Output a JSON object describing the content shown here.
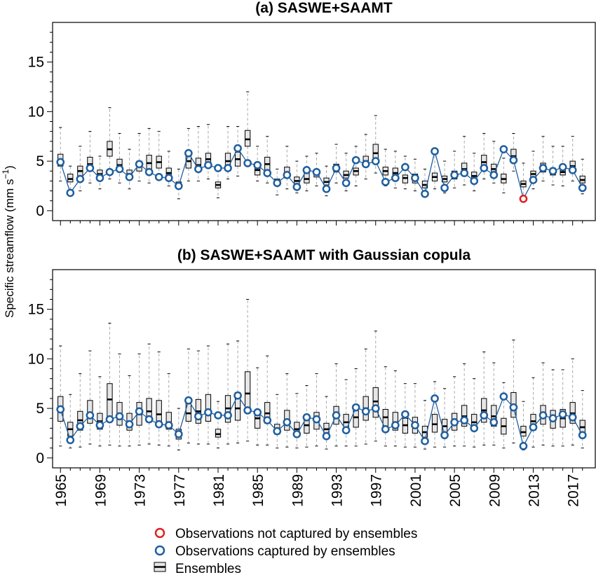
{
  "chart_data": {
    "type": "box",
    "ylabel": "Specific streamflow (mm s",
    "ylabel_sup": "−1",
    "ylabel_close": ")",
    "x_ticks": [
      1965,
      1969,
      1973,
      1977,
      1981,
      1985,
      1989,
      1993,
      1997,
      2001,
      2005,
      2009,
      2013,
      2017
    ],
    "y_ticks": [
      0,
      5,
      10,
      15
    ],
    "ylim": [
      -1,
      19
    ],
    "xlim": [
      1964.2,
      2019.3
    ],
    "colors": {
      "box_fill": "#e6e6e6",
      "captured": "#1f5fa0",
      "not_captured": "#e02020",
      "whisker": "#aaaaaa"
    },
    "panels": [
      {
        "title": "(a) SASWE+SAAMT",
        "years": [
          1965,
          1966,
          1967,
          1968,
          1969,
          1970,
          1971,
          1972,
          1973,
          1974,
          1975,
          1976,
          1977,
          1978,
          1979,
          1980,
          1981,
          1982,
          1983,
          1984,
          1985,
          1986,
          1987,
          1988,
          1989,
          1990,
          1991,
          1992,
          1993,
          1994,
          1995,
          1996,
          1997,
          1998,
          1999,
          2000,
          2001,
          2002,
          2003,
          2004,
          2005,
          2006,
          2007,
          2008,
          2009,
          2010,
          2011,
          2012,
          2013,
          2014,
          2015,
          2016,
          2017,
          2018
        ],
        "whislo": [
          3.0,
          1.5,
          2.0,
          2.8,
          2.2,
          3.2,
          2.8,
          2.2,
          3.0,
          2.8,
          3.2,
          2.5,
          1.2,
          3.0,
          3.0,
          3.2,
          1.3,
          3.2,
          3.5,
          4.5,
          3.0,
          2.8,
          1.6,
          2.2,
          1.8,
          2.0,
          2.5,
          1.5,
          2.8,
          2.0,
          2.5,
          3.2,
          3.8,
          2.5,
          2.3,
          2.2,
          2.0,
          1.5,
          2.2,
          1.8,
          2.3,
          2.6,
          2.0,
          3.2,
          2.8,
          1.8,
          4.0,
          1.5,
          2.2,
          3.0,
          2.6,
          2.5,
          3.0,
          1.7
        ],
        "q1": [
          4.5,
          2.9,
          3.5,
          4.2,
          3.3,
          5.5,
          4.2,
          3.4,
          4.0,
          4.2,
          4.3,
          3.4,
          2.3,
          4.3,
          4.0,
          4.5,
          2.3,
          4.5,
          4.5,
          6.5,
          3.6,
          4.1,
          2.6,
          3.3,
          2.7,
          2.8,
          3.4,
          2.6,
          3.9,
          3.3,
          3.6,
          4.6,
          5.0,
          3.6,
          3.3,
          2.8,
          2.8,
          2.3,
          3.0,
          2.9,
          3.2,
          3.7,
          3.2,
          4.4,
          3.8,
          2.8,
          5.0,
          2.4,
          3.3,
          3.9,
          3.6,
          3.6,
          4.2,
          2.8
        ],
        "med": [
          5.0,
          3.2,
          4.0,
          4.7,
          3.7,
          6.2,
          4.6,
          3.7,
          4.5,
          4.8,
          4.9,
          3.8,
          2.5,
          5.0,
          4.6,
          5.2,
          2.6,
          5.0,
          5.2,
          7.2,
          4.1,
          4.7,
          2.9,
          3.6,
          3.0,
          3.2,
          3.8,
          2.9,
          4.3,
          3.6,
          4.0,
          5.0,
          5.8,
          4.0,
          3.8,
          3.3,
          3.3,
          2.6,
          3.4,
          3.2,
          3.7,
          4.2,
          3.5,
          4.9,
          4.2,
          3.2,
          5.5,
          2.7,
          3.7,
          4.3,
          3.9,
          3.9,
          4.5,
          3.1
        ],
        "q3": [
          5.7,
          3.7,
          4.5,
          5.4,
          4.1,
          7.0,
          5.2,
          4.1,
          5.0,
          5.6,
          5.5,
          4.3,
          2.9,
          5.5,
          5.3,
          5.8,
          2.9,
          5.8,
          5.9,
          8.1,
          4.6,
          5.4,
          3.2,
          4.4,
          3.4,
          3.8,
          4.1,
          3.3,
          4.7,
          4.0,
          4.3,
          5.5,
          6.7,
          4.4,
          4.3,
          3.6,
          3.7,
          3.0,
          3.8,
          3.5,
          4.0,
          4.8,
          3.9,
          5.6,
          4.7,
          3.7,
          6.2,
          3.0,
          4.0,
          4.8,
          4.3,
          4.4,
          5.0,
          3.5
        ],
        "whishi": [
          8.4,
          4.5,
          6.5,
          8.0,
          5.5,
          10.4,
          7.8,
          6.2,
          7.8,
          8.3,
          8.0,
          6.0,
          4.2,
          8.3,
          8.5,
          8.7,
          4.0,
          8.5,
          8.5,
          12.0,
          6.5,
          7.5,
          4.2,
          6.5,
          5.0,
          5.5,
          5.8,
          4.5,
          6.7,
          5.8,
          6.5,
          7.7,
          9.6,
          6.2,
          6.0,
          5.5,
          5.2,
          4.2,
          6.2,
          5.0,
          6.0,
          7.5,
          5.8,
          7.8,
          7.0,
          5.3,
          7.8,
          4.8,
          6.0,
          7.5,
          6.5,
          6.5,
          7.5,
          5.2
        ],
        "obs": [
          4.9,
          1.8,
          3.2,
          4.3,
          3.3,
          3.9,
          4.2,
          3.4,
          4.7,
          3.9,
          3.4,
          3.3,
          2.5,
          5.8,
          4.2,
          4.6,
          4.3,
          4.3,
          6.3,
          4.8,
          4.6,
          3.8,
          2.8,
          3.6,
          2.4,
          4.1,
          3.9,
          2.2,
          4.3,
          2.8,
          5.1,
          4.7,
          5.0,
          2.9,
          3.3,
          4.4,
          3.3,
          1.7,
          6.0,
          2.3,
          3.6,
          3.8,
          3.0,
          4.3,
          3.6,
          6.2,
          5.1,
          1.2,
          3.1,
          4.3,
          4.0,
          4.4,
          4.1,
          2.3
        ],
        "missed_index": 47
      },
      {
        "title": "(b) SASWE+SAAMT with Gaussian copula",
        "years": [
          1965,
          1966,
          1967,
          1968,
          1969,
          1970,
          1971,
          1972,
          1973,
          1974,
          1975,
          1976,
          1977,
          1978,
          1979,
          1980,
          1981,
          1982,
          1983,
          1984,
          1985,
          1986,
          1987,
          1988,
          1989,
          1990,
          1991,
          1992,
          1993,
          1994,
          1995,
          1996,
          1997,
          1998,
          1999,
          2000,
          2001,
          2002,
          2003,
          2004,
          2005,
          2006,
          2007,
          2008,
          2009,
          2010,
          2011,
          2012,
          2013,
          2014,
          2015,
          2016,
          2017,
          2018
        ],
        "whislo": [
          1.2,
          1.0,
          1.1,
          1.4,
          1.2,
          1.3,
          1.2,
          1.2,
          1.3,
          1.4,
          1.3,
          1.2,
          0.8,
          1.5,
          1.4,
          1.4,
          1.0,
          1.4,
          1.5,
          1.7,
          1.3,
          1.3,
          1.0,
          1.1,
          1.0,
          1.1,
          1.2,
          0.9,
          1.2,
          1.2,
          1.2,
          1.4,
          1.7,
          1.2,
          1.2,
          1.1,
          1.1,
          0.9,
          1.1,
          1.1,
          1.2,
          1.2,
          1.1,
          1.3,
          1.3,
          1.0,
          1.5,
          0.8,
          1.1,
          1.3,
          1.2,
          1.2,
          1.3,
          1.0
        ],
        "q1": [
          3.7,
          2.2,
          2.8,
          3.5,
          2.9,
          3.8,
          3.3,
          2.8,
          3.3,
          3.6,
          3.4,
          2.9,
          1.9,
          3.7,
          3.5,
          3.7,
          2.1,
          3.6,
          3.8,
          4.7,
          3.0,
          3.5,
          2.4,
          2.8,
          2.4,
          2.5,
          2.9,
          2.3,
          3.4,
          2.8,
          3.1,
          3.8,
          4.1,
          3.1,
          2.8,
          2.5,
          2.5,
          2.1,
          2.6,
          2.5,
          2.8,
          3.2,
          2.8,
          3.6,
          3.2,
          2.4,
          4.1,
          2.2,
          2.8,
          3.4,
          3.0,
          3.1,
          3.5,
          2.5
        ],
        "med": [
          4.9,
          2.9,
          3.8,
          4.5,
          3.7,
          5.9,
          4.3,
          3.6,
          4.4,
          4.7,
          4.4,
          3.6,
          2.4,
          4.5,
          4.7,
          4.8,
          2.4,
          5.0,
          5.0,
          6.5,
          4.0,
          4.5,
          2.9,
          3.6,
          2.9,
          3.3,
          3.7,
          2.9,
          4.3,
          3.6,
          4.1,
          5.0,
          5.7,
          4.1,
          3.6,
          3.3,
          3.3,
          2.6,
          3.4,
          3.2,
          3.7,
          4.2,
          3.6,
          4.8,
          4.2,
          3.2,
          5.3,
          2.6,
          3.7,
          4.2,
          3.9,
          4.0,
          4.5,
          3.1
        ],
        "q3": [
          6.2,
          3.6,
          4.7,
          5.8,
          4.5,
          7.5,
          5.6,
          4.5,
          5.6,
          6.0,
          5.8,
          4.6,
          2.9,
          6.0,
          5.9,
          6.4,
          2.9,
          6.3,
          6.6,
          8.7,
          4.8,
          5.6,
          3.4,
          4.8,
          3.6,
          4.2,
          4.6,
          3.5,
          5.2,
          4.4,
          5.1,
          6.2,
          7.1,
          4.9,
          4.6,
          4.0,
          4.1,
          3.2,
          4.4,
          3.9,
          4.5,
          5.3,
          4.4,
          6.0,
          5.3,
          4.0,
          6.6,
          3.2,
          4.4,
          5.3,
          4.8,
          4.9,
          5.6,
          3.8
        ],
        "whishi": [
          11.3,
          6.4,
          8.5,
          10.8,
          8.2,
          13.6,
          10.5,
          8.3,
          10.5,
          11.5,
          10.7,
          8.5,
          5.0,
          11.0,
          10.8,
          11.3,
          5.7,
          11.5,
          11.8,
          16.0,
          9.1,
          10.3,
          6.4,
          8.5,
          6.5,
          7.3,
          8.5,
          6.2,
          9.5,
          7.9,
          9.0,
          11.0,
          12.8,
          9.2,
          8.8,
          7.5,
          7.5,
          5.8,
          7.7,
          7.0,
          8.2,
          9.5,
          8.0,
          10.7,
          9.6,
          7.6,
          11.9,
          5.7,
          8.1,
          9.6,
          8.9,
          8.9,
          10.0,
          6.8
        ],
        "obs": [
          4.9,
          1.8,
          3.2,
          4.3,
          3.3,
          3.9,
          4.2,
          3.4,
          4.7,
          3.9,
          3.4,
          3.3,
          2.4,
          5.8,
          4.2,
          4.6,
          4.3,
          4.3,
          6.3,
          4.8,
          4.6,
          3.8,
          2.7,
          3.6,
          2.4,
          4.1,
          3.9,
          2.2,
          4.3,
          2.8,
          5.1,
          4.7,
          5.0,
          2.9,
          3.3,
          4.4,
          3.3,
          1.7,
          6.0,
          2.3,
          3.6,
          3.8,
          3.0,
          4.3,
          3.6,
          6.2,
          5.1,
          1.2,
          3.1,
          4.3,
          4.0,
          4.4,
          4.1,
          2.3
        ],
        "missed_index": -1
      }
    ]
  },
  "legend": {
    "not_captured": "Observations not captured by ensembles",
    "captured": "Observations captured by ensembles",
    "ensembles": "Ensembles"
  }
}
